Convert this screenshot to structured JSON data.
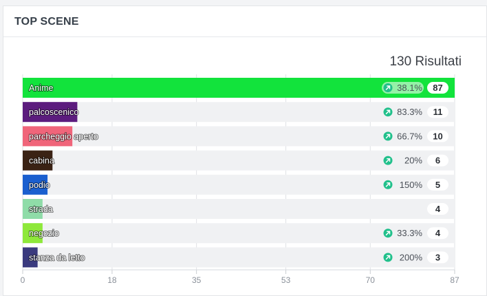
{
  "card": {
    "title": "TOP SCENE",
    "results_label": "130 Risultati"
  },
  "colors": {
    "track": "#f0f1f3",
    "trend_icon": "#21c08b",
    "badge_bg": "#ffffff"
  },
  "chart_data": {
    "type": "bar",
    "orientation": "horizontal",
    "title": "",
    "xlabel": "",
    "ylabel": "",
    "xlim": [
      0,
      87
    ],
    "xticks": [
      "0",
      "18",
      "35",
      "53",
      "70",
      "87"
    ],
    "grid": true,
    "categories": [
      "Anime",
      "palcoscenico",
      "parcheggio aperto",
      "cabina",
      "podio",
      "strada",
      "negozio",
      "stanza da letto"
    ],
    "values": [
      87,
      11,
      10,
      6,
      5,
      4,
      4,
      3
    ],
    "labels": [
      "87",
      "11",
      "10",
      "6",
      "5",
      "4",
      "4",
      "3"
    ],
    "changes": [
      "38.1%",
      "83.3%",
      "66.7%",
      "20%",
      "150%",
      "",
      "33.3%",
      "200%"
    ],
    "bar_colors": [
      "#12e33c",
      "#5c1c7e",
      "#f0657a",
      "#3a2214",
      "#1a5fcf",
      "#8fdca8",
      "#8ee83a",
      "#3a3a7e"
    ]
  }
}
